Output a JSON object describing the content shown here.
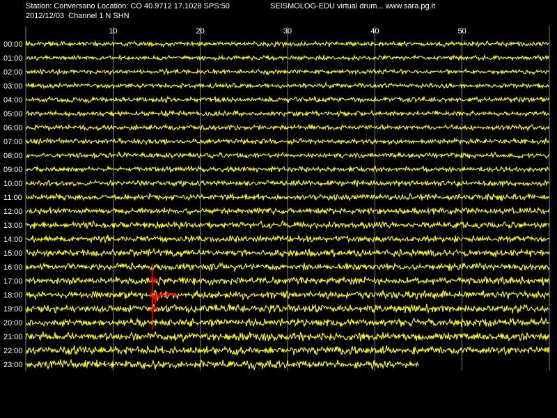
{
  "header": {
    "station_line": "Station: Conversano Location: CO 40.9712 17.1028 SPS:50",
    "date_line": "2012/12/03  Channel 1 N SHN",
    "brand": "SEISMOLOG-EDU virtual drum... www.sara.pg.it"
  },
  "colors": {
    "background": "#000000",
    "trace": "#ffff00",
    "event": "#ff0000",
    "grid": "#ffffff",
    "text": "#ffffff"
  },
  "chart_data": {
    "type": "line",
    "title": "",
    "xlabel": "",
    "ylabel": "",
    "x_range": [
      0,
      60
    ],
    "x_ticks": [
      10,
      20,
      30,
      40,
      50
    ],
    "grid": true,
    "rows": [
      "00:00",
      "01:00",
      "02:00",
      "03:00",
      "04:00",
      "05:00",
      "06:00",
      "07:00",
      "08:00",
      "09:00",
      "10:00",
      "11:00",
      "12:00",
      "13:00",
      "14:00",
      "15:00",
      "16:00",
      "17:00",
      "18:00",
      "19:00",
      "20:00",
      "21:00",
      "22:00",
      "23:00"
    ],
    "noise_level": [
      0.25,
      0.22,
      0.22,
      0.22,
      0.3,
      0.3,
      0.28,
      0.3,
      0.3,
      0.32,
      0.35,
      0.45,
      0.45,
      0.5,
      0.5,
      0.55,
      0.55,
      0.65,
      0.65,
      0.7,
      0.7,
      0.75,
      0.7,
      0.75
    ],
    "last_row_end_minute": 45,
    "event": {
      "row_start": "17:00",
      "row_peak": "18:00",
      "minute": 14.5,
      "rows_spanned": [
        "16:00",
        "17:00",
        "18:00",
        "19:00",
        "20:00"
      ]
    }
  }
}
